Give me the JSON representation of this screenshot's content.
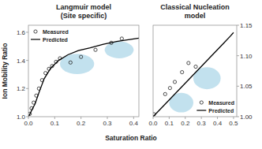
{
  "chart_data": [
    {
      "type": "scatter",
      "title": "Langmuir model",
      "subtitle": "(Site specific)",
      "x_label": "Saturation Ratio",
      "y_label": "Ion Mobility Ratio",
      "xlim": [
        0.0,
        0.42
      ],
      "ylim": [
        1.0,
        1.65
      ],
      "xticks": [
        {
          "value": 0.0,
          "label": "0.0"
        },
        0.1,
        0.2,
        0.3,
        0.4
      ],
      "yticks": [
        {
          "value": 1.0,
          "label": "1.0"
        },
        {
          "value": 1.2,
          "label": "1.2"
        },
        {
          "value": 1.4,
          "label": "1.4"
        },
        {
          "value": 1.6,
          "label": "1.6"
        }
      ],
      "grid": false,
      "legend": "upper left",
      "series": [
        {
          "type": "ellipse",
          "color": "#90C8E0",
          "x": [
            0.185,
            0.345
          ],
          "values": [
            1.375,
            1.475
          ],
          "rx": [
            0.065,
            0.055
          ],
          "ry": [
            0.072,
            0.06
          ]
        },
        {
          "name": "Measured",
          "type": "scatter",
          "marker": "circle",
          "color": "#222222",
          "x": [
            0.005,
            0.012,
            0.02,
            0.03,
            0.04,
            0.052,
            0.065,
            0.078,
            0.09,
            0.105,
            0.12,
            0.16,
            0.2,
            0.255,
            0.315,
            0.355
          ],
          "values": [
            1.02,
            1.06,
            1.1,
            1.15,
            1.2,
            1.26,
            1.31,
            1.34,
            1.36,
            1.39,
            1.415,
            1.385,
            1.425,
            1.475,
            1.525,
            1.555
          ]
        },
        {
          "name": "Predicted",
          "type": "line",
          "color": "black",
          "x": [
            0.001,
            0.004,
            0.008,
            0.015,
            0.025,
            0.04,
            0.06,
            0.085,
            0.115,
            0.15,
            0.19,
            0.235,
            0.285,
            0.335,
            0.39,
            0.42
          ],
          "values": [
            1.003,
            1.013,
            1.028,
            1.055,
            1.09,
            1.17,
            1.27,
            1.345,
            1.4,
            1.44,
            1.47,
            1.49,
            1.515,
            1.535,
            1.55,
            1.558
          ]
        }
      ]
    },
    {
      "type": "scatter",
      "title": "Classical Nucleation",
      "subtitle": "model",
      "xlim": [
        0.0,
        0.52
      ],
      "ylim": [
        1.0,
        1.15
      ],
      "xticks": [
        {
          "value": 0.0,
          "label": "0.0"
        },
        0.1,
        0.2,
        0.3,
        0.4,
        0.5
      ],
      "yticks": [
        {
          "value": 1.0,
          "label": "1.00"
        },
        {
          "value": 1.05,
          "label": "1.05"
        },
        {
          "value": 1.1,
          "label": "1.10"
        },
        {
          "value": 1.15,
          "label": "1.15"
        }
      ],
      "grid": false,
      "legend": "lower right",
      "series": [
        {
          "type": "ellipse",
          "color": "#90C8E0",
          "x": [
            0.175,
            0.335
          ],
          "values": [
            1.023,
            1.063
          ],
          "rx": [
            0.075,
            0.085
          ],
          "ry": [
            0.016,
            0.018
          ]
        },
        {
          "name": "Measured",
          "type": "scatter",
          "marker": "circle",
          "color": "#222222",
          "x": [
            0.005,
            0.075,
            0.105,
            0.135,
            0.18,
            0.22,
            0.265
          ],
          "values": [
            1.004,
            1.037,
            1.047,
            1.057,
            1.073,
            1.088,
            1.082
          ]
        },
        {
          "name": "Predicted",
          "type": "line",
          "color": "black",
          "x": [
            0.0,
            0.04,
            0.08,
            0.12,
            0.16,
            0.2,
            0.24,
            0.28,
            0.32,
            0.36,
            0.4,
            0.44,
            0.48,
            0.5
          ],
          "values": [
            1.0,
            1.011,
            1.022,
            1.033,
            1.044,
            1.055,
            1.066,
            1.077,
            1.088,
            1.099,
            1.11,
            1.121,
            1.132,
            1.138
          ]
        }
      ]
    }
  ]
}
